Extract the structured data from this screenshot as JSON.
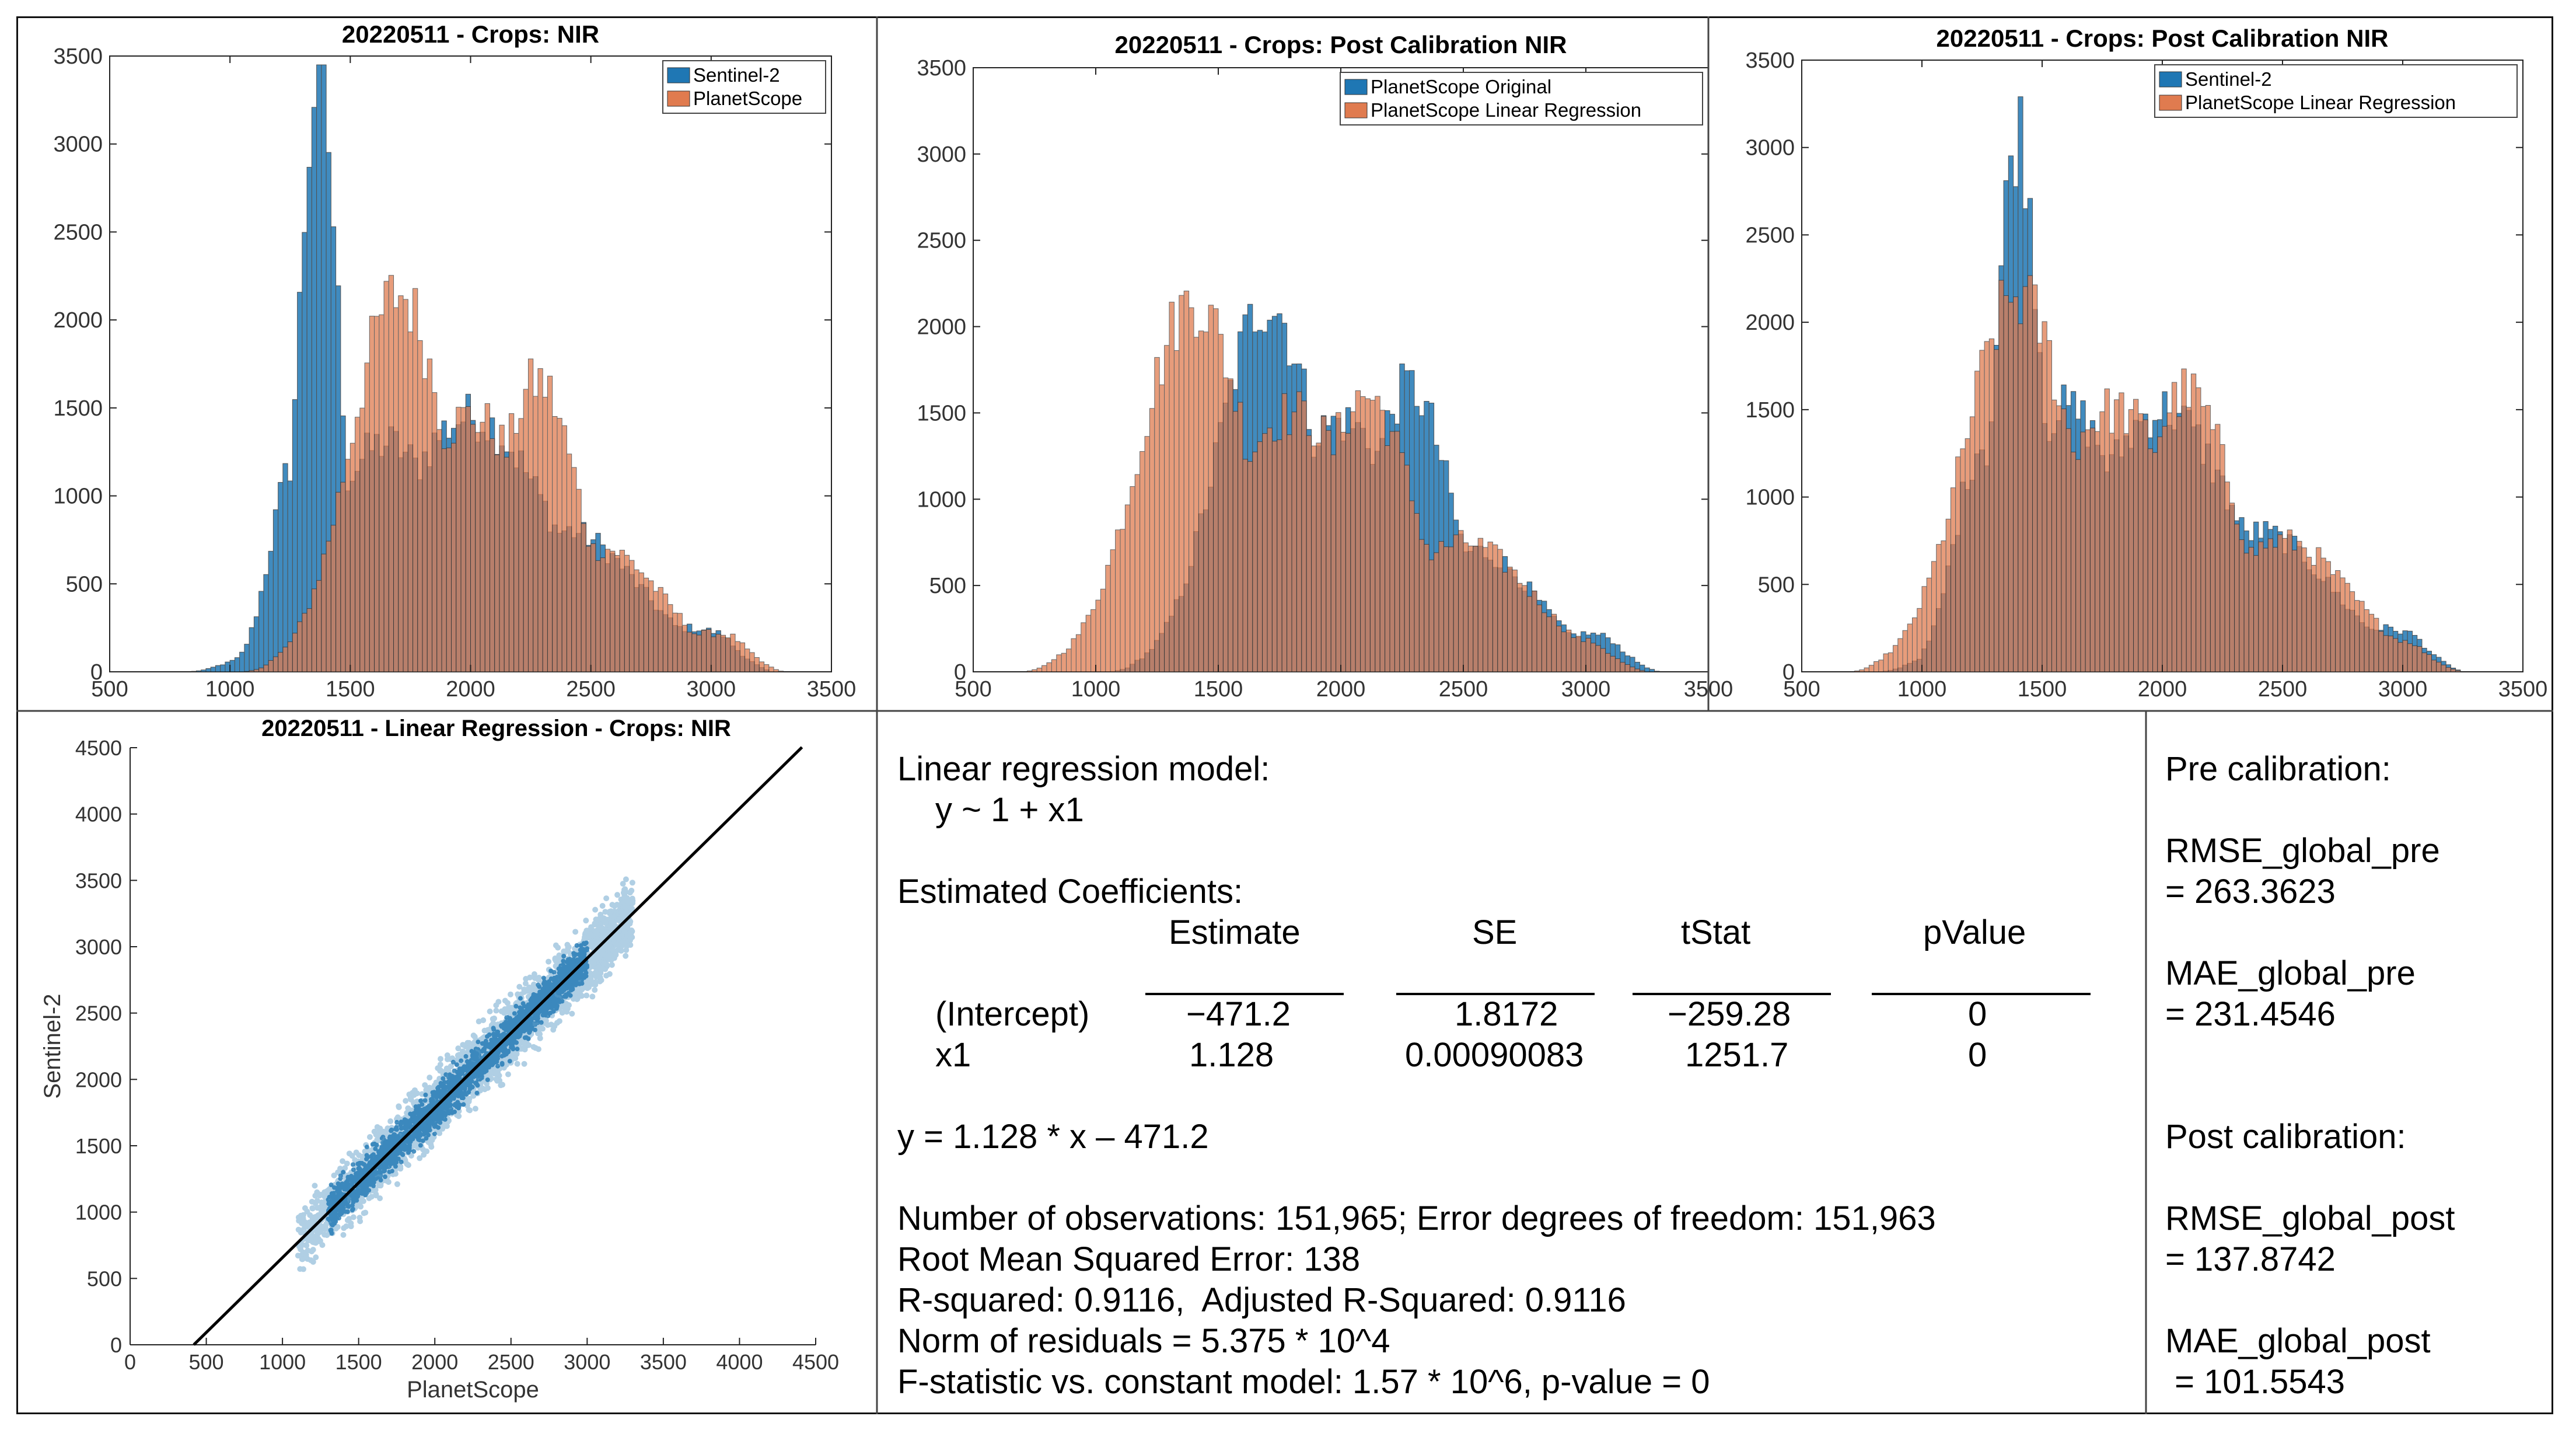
{
  "colors": {
    "blue": "#1f77b4",
    "orange": "#e07b4f",
    "line": "#000000"
  },
  "chart_data": [
    {
      "type": "histogram",
      "title": "20220511 - Crops: NIR",
      "xlim": [
        500,
        3500
      ],
      "ylim": [
        0,
        3500
      ],
      "xticks": [
        500,
        1000,
        1500,
        2000,
        2500,
        3000,
        3500
      ],
      "yticks": [
        0,
        500,
        1000,
        1500,
        2000,
        2500,
        3000,
        3500
      ],
      "legend_position": "top-right",
      "series": [
        {
          "name": "Sentinel-2",
          "color": "#1f77b4",
          "peaks": [
            [
              1370,
              3400,
              80
            ],
            [
              1270,
              1200,
              100
            ],
            [
              1650,
              1300,
              260
            ],
            [
              2000,
              1450,
              330
            ],
            [
              2400,
              800,
              300
            ],
            [
              2900,
              250,
              250
            ]
          ],
          "xmin": 820,
          "xmax": 3250
        },
        {
          "name": "PlanetScope",
          "color": "#e07b4f",
          "peaks": [
            [
              1700,
              2150,
              200
            ],
            [
              2000,
              1450,
              280
            ],
            [
              2280,
              1650,
              170
            ],
            [
              2550,
              700,
              250
            ],
            [
              3000,
              220,
              200
            ]
          ],
          "xmin": 1050,
          "xmax": 3300
        }
      ]
    },
    {
      "type": "histogram",
      "title": "20220511 - Crops: Post Calibration NIR",
      "xlim": [
        500,
        3500
      ],
      "ylim": [
        0,
        3500
      ],
      "xticks": [
        500,
        1000,
        1500,
        2000,
        2500,
        3000,
        3500
      ],
      "yticks": [
        0,
        500,
        1000,
        1500,
        2000,
        2500,
        3000,
        3500
      ],
      "legend_position": "top-right",
      "series": [
        {
          "name": "PlanetScope Original",
          "color": "#1f77b4",
          "peaks": [
            [
              1700,
              2150,
              200
            ],
            [
              2000,
              1450,
              280
            ],
            [
              2280,
              1650,
              170
            ],
            [
              2550,
              700,
              250
            ],
            [
              3000,
              220,
              200
            ]
          ],
          "xmin": 1050,
          "xmax": 3300
        },
        {
          "name": "PlanetScope Linear Regression",
          "color": "#e07b4f",
          "peaks": [
            [
              1400,
              2150,
              220
            ],
            [
              1800,
              1500,
              300
            ],
            [
              2100,
              1600,
              200
            ],
            [
              2500,
              750,
              280
            ],
            [
              2900,
              200,
              230
            ]
          ],
          "xmin": 700,
          "xmax": 3250
        }
      ]
    },
    {
      "type": "histogram",
      "title": "20220511 - Crops: Post Calibration NIR",
      "xlim": [
        500,
        3500
      ],
      "ylim": [
        0,
        3500
      ],
      "xticks": [
        500,
        1000,
        1500,
        2000,
        2500,
        3000,
        3500
      ],
      "yticks": [
        0,
        500,
        1000,
        1500,
        2000,
        2500,
        3000,
        3500
      ],
      "legend_position": "top-right",
      "series": [
        {
          "name": "Sentinel-2",
          "color": "#1f77b4",
          "peaks": [
            [
              1400,
              3100,
              90
            ],
            [
              1250,
              1300,
              110
            ],
            [
              1600,
              1500,
              250
            ],
            [
              2000,
              1500,
              300
            ],
            [
              2400,
              800,
              300
            ],
            [
              2900,
              250,
              250
            ]
          ],
          "xmin": 820,
          "xmax": 3250
        },
        {
          "name": "PlanetScope Linear Regression",
          "color": "#e07b4f",
          "peaks": [
            [
              1400,
              2150,
              220
            ],
            [
              1800,
              1500,
              300
            ],
            [
              2100,
              1600,
              200
            ],
            [
              2500,
              750,
              280
            ],
            [
              2900,
              200,
              230
            ]
          ],
          "xmin": 700,
          "xmax": 3250
        }
      ]
    },
    {
      "type": "scatter",
      "title": "20220511 - Linear Regression - Crops: NIR",
      "xlabel": "PlanetScope",
      "ylabel": "Sentinel-2",
      "xlim": [
        0,
        4500
      ],
      "ylim": [
        0,
        4500
      ],
      "xticks": [
        0,
        500,
        1000,
        1500,
        2000,
        2500,
        3000,
        3500,
        4000,
        4500
      ],
      "yticks": [
        0,
        500,
        1000,
        1500,
        2000,
        2500,
        3000,
        3500,
        4000,
        4500
      ],
      "fit_line": {
        "slope": 1.128,
        "intercept": -471.2,
        "x_range": [
          418,
          4410
        ]
      },
      "cloud": {
        "x_range": [
          1100,
          3300
        ],
        "spread": 180,
        "color": "#1f77b4"
      }
    }
  ],
  "regression": {
    "line1": "Linear regression model:",
    "line2": "y ~ 1 + x1",
    "line3": "Estimated Coefficients:",
    "headers": [
      "Estimate",
      "SE",
      "tStat",
      "pValue"
    ],
    "rows": [
      {
        "name": "(Intercept)",
        "estimate": "−471.2",
        "se": "1.8172",
        "tstat": "−259.28",
        "pvalue": "0"
      },
      {
        "name": "x1",
        "estimate": "1.128",
        "se": "0.00090083",
        "tstat": "1251.7",
        "pvalue": "0"
      }
    ],
    "equation": "y = 1.128 * x – 471.2",
    "obs": "Number of observations: 151,965; Error degrees of freedom: 151,963",
    "rmse": "Root Mean Squared Error: 138",
    "r2": "R-squared: 0.9116,  Adjusted R-Squared: 0.9116",
    "norm": "Norm of residuals = 5.375 * 10^4",
    "fstat": "F-statistic vs. constant model: 1.57 * 10^6, p-value = 0"
  },
  "stats": {
    "pre_title": "Pre calibration:",
    "rmse_pre_label": "RMSE_global_pre",
    "rmse_pre_value": "= 263.3623",
    "mae_pre_label": "MAE_global_pre",
    "mae_pre_value": "= 231.4546",
    "post_title": "Post calibration:",
    "rmse_post_label": "RMSE_global_post",
    "rmse_post_value": "= 137.8742",
    "mae_post_label": "MAE_global_post",
    "mae_post_value": " = 101.5543"
  }
}
